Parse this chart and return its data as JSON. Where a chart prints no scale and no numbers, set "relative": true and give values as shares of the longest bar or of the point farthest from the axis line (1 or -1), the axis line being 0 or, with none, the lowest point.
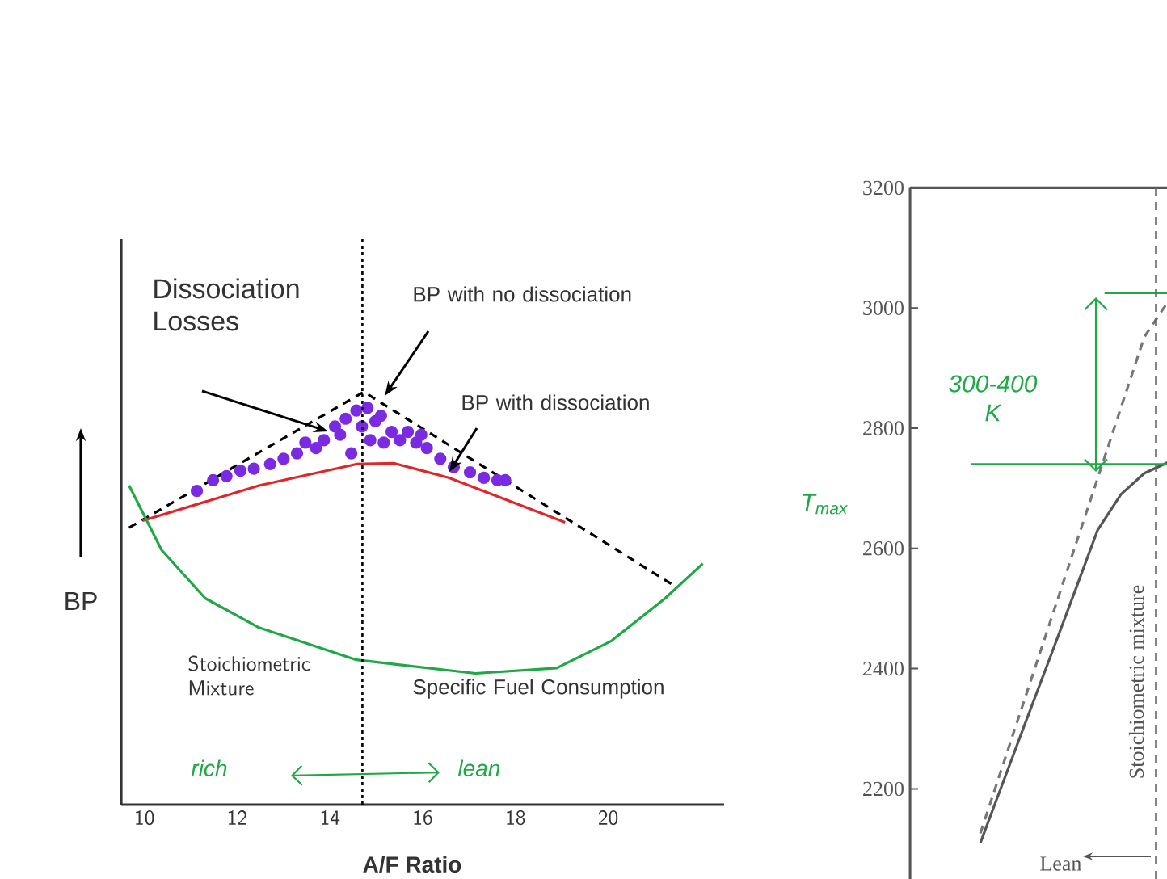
{
  "chart_data": [
    {
      "type": "line",
      "xlabel": "A/F Ratio",
      "ylabel": "BP",
      "relative": true,
      "xlim": [
        9.5,
        22.5
      ],
      "xticks": [
        10,
        12,
        14,
        16,
        18,
        20
      ],
      "tick_labels": "x",
      "series": [
        {
          "color": "#000000",
          "line_style": "dashed",
          "x": [
            9.67,
            14.73,
            21.4
          ],
          "values": [
            0.671,
            1.0,
            0.532
          ]
        },
        {
          "color": "#e0262a",
          "line_style": "solid",
          "x": [
            9.96,
            12.47,
            14.57,
            15.39,
            16.56,
            19.07
          ],
          "values": [
            0.688,
            0.773,
            0.825,
            0.827,
            0.792,
            0.684
          ]
        },
        {
          "color": "#1fa845",
          "line_style": "solid",
          "x": [
            9.67,
            10.37,
            11.31,
            12.47,
            14.57,
            17.14,
            18.89,
            20.06,
            21.23,
            22.04
          ],
          "values": [
            0.773,
            0.617,
            0.5,
            0.429,
            0.351,
            0.318,
            0.331,
            0.396,
            0.5,
            0.584
          ]
        },
        {
          "type": "scatter",
          "color": "#7a2be2",
          "marker": "circle",
          "x": [
            11.13,
            11.48,
            11.77,
            12.07,
            12.36,
            12.71,
            13.0,
            13.29,
            13.47,
            13.7,
            13.87,
            14.11,
            14.22,
            14.34,
            14.46,
            14.57,
            14.69,
            14.81,
            14.87,
            14.98,
            15.1,
            15.16,
            15.33,
            15.51,
            15.68,
            15.86,
            15.97,
            16.09,
            16.38,
            16.67,
            17.02,
            17.32,
            17.61,
            17.78
          ],
          "values": [
            0.76,
            0.786,
            0.796,
            0.809,
            0.814,
            0.825,
            0.838,
            0.851,
            0.877,
            0.864,
            0.883,
            0.916,
            0.896,
            0.935,
            0.851,
            0.955,
            0.916,
            0.961,
            0.883,
            0.929,
            0.942,
            0.877,
            0.903,
            0.883,
            0.903,
            0.877,
            0.896,
            0.864,
            0.838,
            0.818,
            0.805,
            0.792,
            0.786,
            0.786
          ]
        }
      ],
      "ref_lines": [
        {
          "axis": "x",
          "value": 14.7,
          "label": "Stoichiometric Mixture",
          "color": "#000000",
          "line_style": "dotted"
        }
      ],
      "annotations": [
        "Dissociation Losses",
        "BP with no dissociation",
        "BP with dissociation",
        "Specific Fuel Consumption",
        "rich",
        "lean"
      ]
    },
    {
      "type": "line",
      "categories": [
        null,
        null,
        null,
        null,
        null,
        null,
        null,
        null,
        null,
        null,
        null,
        null
      ],
      "ylim": [
        2050,
        3200
      ],
      "yticks": [
        2200,
        2400,
        2600,
        2800,
        3000,
        3200
      ],
      "tick_labels": "y",
      "series": [
        {
          "color": "#777777",
          "line_style": "dashed",
          "values": [
            null,
            null,
            null,
            2126,
            2244,
            2362,
            2480,
            2598,
            2716,
            2834,
            2952,
            3010
          ]
        },
        {
          "color": "#555555",
          "line_style": "solid",
          "values": [
            null,
            null,
            null,
            2110,
            2214,
            2318,
            2421,
            2525,
            2630,
            2690,
            2725,
            2743
          ]
        }
      ],
      "ref_lines": [
        {
          "axis": "y",
          "value": 2740,
          "label": "T$_{max}$",
          "color": "#1fa845",
          "line_style": "solid"
        },
        {
          "axis": "y",
          "value": 3025,
          "color": "#1fa845",
          "line_style": "solid"
        }
      ],
      "annotations": [
        "300-400 K",
        "Lean",
        "Stoichiometric mixture"
      ]
    }
  ]
}
